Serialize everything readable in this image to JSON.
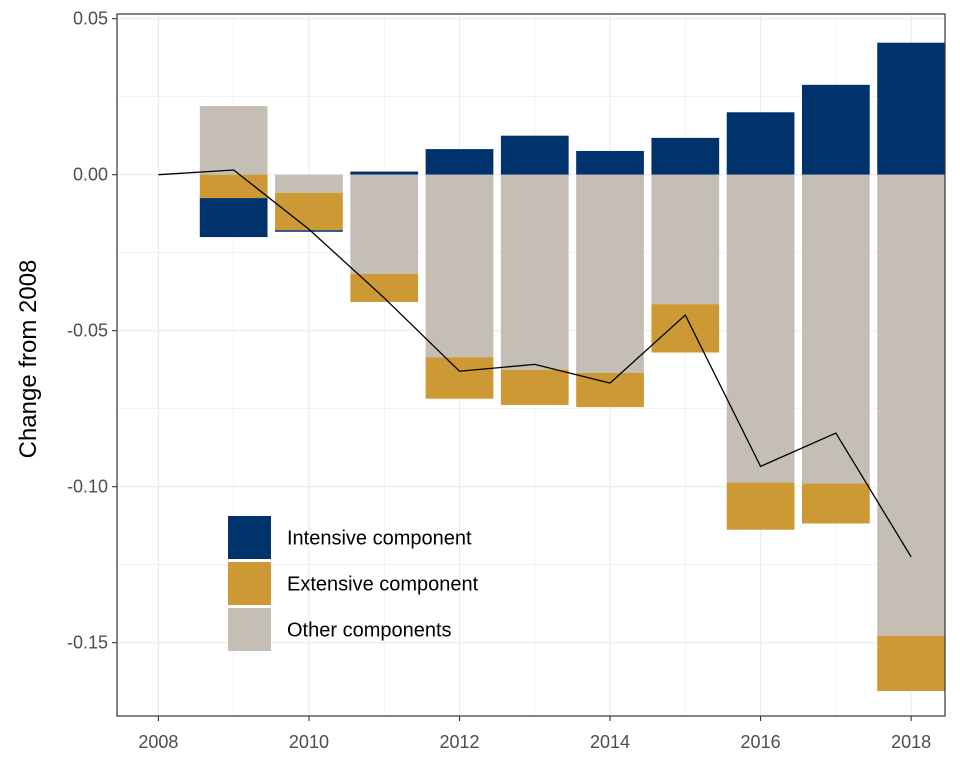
{
  "chart_data": {
    "type": "bar",
    "subtype": "stacked-diverging-with-line",
    "ylabel": "Change from 2008",
    "xlabel": "",
    "xlim": [
      2007.45,
      2018.45
    ],
    "ylim": [
      -0.1735,
      0.0515
    ],
    "x_ticks": [
      2008,
      2010,
      2012,
      2014,
      2016,
      2018
    ],
    "y_ticks": [
      0.05,
      0.0,
      -0.05,
      -0.1,
      -0.15
    ],
    "y_tick_labels": [
      "0.05",
      "0.00",
      "-0.05",
      "-0.10",
      "-0.15"
    ],
    "grid": true,
    "legend_position": "bottom-left",
    "x": [
      2009,
      2010,
      2011,
      2012,
      2013,
      2014,
      2015,
      2016,
      2017,
      2018
    ],
    "segments": [
      {
        "year": 2009,
        "series": "Other components",
        "from": 0.0,
        "to": 0.022
      },
      {
        "year": 2009,
        "series": "Extensive component",
        "from": 0.0,
        "to": -0.0075
      },
      {
        "year": 2009,
        "series": "Intensive component",
        "from": -0.0075,
        "to": -0.02
      },
      {
        "year": 2010,
        "series": "Other components",
        "from": 0.0,
        "to": -0.0058
      },
      {
        "year": 2010,
        "series": "Extensive component",
        "from": -0.0058,
        "to": -0.0178
      },
      {
        "year": 2010,
        "series": "Intensive component",
        "from": -0.0178,
        "to": -0.0183
      },
      {
        "year": 2011,
        "series": "Intensive component",
        "from": 0.0,
        "to": 0.001
      },
      {
        "year": 2011,
        "series": "Other components",
        "from": 0.0,
        "to": -0.0318
      },
      {
        "year": 2011,
        "series": "Extensive component",
        "from": -0.0318,
        "to": -0.0408
      },
      {
        "year": 2012,
        "series": "Intensive component",
        "from": 0.0,
        "to": 0.0082
      },
      {
        "year": 2012,
        "series": "Other components",
        "from": 0.0,
        "to": -0.0585
      },
      {
        "year": 2012,
        "series": "Extensive component",
        "from": -0.0585,
        "to": -0.0718
      },
      {
        "year": 2013,
        "series": "Intensive component",
        "from": 0.0,
        "to": 0.0125
      },
      {
        "year": 2013,
        "series": "Other components",
        "from": 0.0,
        "to": -0.0625
      },
      {
        "year": 2013,
        "series": "Extensive component",
        "from": -0.0625,
        "to": -0.0738
      },
      {
        "year": 2014,
        "series": "Intensive component",
        "from": 0.0,
        "to": 0.0076
      },
      {
        "year": 2014,
        "series": "Other components",
        "from": 0.0,
        "to": -0.0635
      },
      {
        "year": 2014,
        "series": "Extensive component",
        "from": -0.0635,
        "to": -0.0745
      },
      {
        "year": 2015,
        "series": "Intensive component",
        "from": 0.0,
        "to": 0.0118
      },
      {
        "year": 2015,
        "series": "Other components",
        "from": 0.0,
        "to": -0.0415
      },
      {
        "year": 2015,
        "series": "Extensive component",
        "from": -0.0415,
        "to": -0.057
      },
      {
        "year": 2016,
        "series": "Intensive component",
        "from": 0.0,
        "to": 0.02
      },
      {
        "year": 2016,
        "series": "Other components",
        "from": 0.0,
        "to": -0.0987
      },
      {
        "year": 2016,
        "series": "Extensive component",
        "from": -0.0987,
        "to": -0.1138
      },
      {
        "year": 2017,
        "series": "Intensive component",
        "from": 0.0,
        "to": 0.0288
      },
      {
        "year": 2017,
        "series": "Other components",
        "from": 0.0,
        "to": -0.099
      },
      {
        "year": 2017,
        "series": "Extensive component",
        "from": -0.099,
        "to": -0.1118
      },
      {
        "year": 2018,
        "series": "Intensive component",
        "from": 0.0,
        "to": 0.0423
      },
      {
        "year": 2018,
        "series": "Other components",
        "from": 0.0,
        "to": -0.1478
      },
      {
        "year": 2018,
        "series": "Extensive component",
        "from": -0.1478,
        "to": -0.1655
      }
    ],
    "line": {
      "x": [
        2008,
        2009,
        2010,
        2011,
        2012,
        2013,
        2014,
        2015,
        2016,
        2017,
        2018
      ],
      "y": [
        0.0,
        0.0015,
        -0.0175,
        -0.0395,
        -0.063,
        -0.0608,
        -0.0668,
        -0.045,
        -0.0935,
        -0.0828,
        -0.1225
      ],
      "color": "#000000"
    },
    "legend": [
      {
        "label": "Intensive component",
        "color": "#00336b"
      },
      {
        "label": "Extensive component",
        "color": "#cd9934"
      },
      {
        "label": "Other components",
        "color": "#c5beb4"
      }
    ]
  }
}
